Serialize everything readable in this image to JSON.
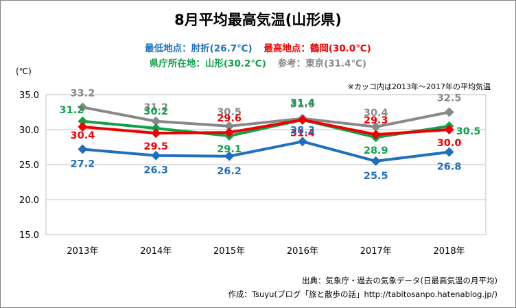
{
  "chart_data": {
    "type": "line",
    "title": "8月平均最高気温(山形県)",
    "legend": [
      {
        "text": "最低地点：肘折(26.7℃)",
        "color": "#1f6fbf"
      },
      {
        "text": "最高地点：鶴岡(30.0℃)",
        "color": "#ee0000"
      },
      {
        "text": "県庁所在地：山形(30.2℃)",
        "color": "#11a04a"
      },
      {
        "text": "参考：東京(31.4℃)",
        "color": "#888888"
      }
    ],
    "unit_label": "(℃)",
    "note": "※カッコ内は2013年～2017年の平均気温",
    "categories": [
      "2013年",
      "2014年",
      "2015年",
      "2016年",
      "2017年",
      "2018年"
    ],
    "ylim": [
      15.0,
      35.0
    ],
    "yticks": [
      "15.0",
      "20.0",
      "25.0",
      "30.0",
      "35.0"
    ],
    "grid": true,
    "series": [
      {
        "name": "東京",
        "color": "#888888",
        "values": [
          33.2,
          31.2,
          30.5,
          31.6,
          30.4,
          32.5
        ]
      },
      {
        "name": "山形",
        "color": "#11a04a",
        "values": [
          31.2,
          30.2,
          29.1,
          31.4,
          28.9,
          30.5
        ]
      },
      {
        "name": "鶴岡",
        "color": "#ee0000",
        "values": [
          30.4,
          29.5,
          29.6,
          31.4,
          29.3,
          30.0
        ]
      },
      {
        "name": "肘折",
        "color": "#1f6fbf",
        "values": [
          27.2,
          26.3,
          26.2,
          28.3,
          25.5,
          26.8
        ]
      }
    ],
    "source": "出典：気象庁・過去の気象データ(日最高気温の月平均)",
    "credit": "作成：Tsuyu(ブログ「旅と散歩の話」http://tabitosanpo.hatenablog.jp/)"
  }
}
